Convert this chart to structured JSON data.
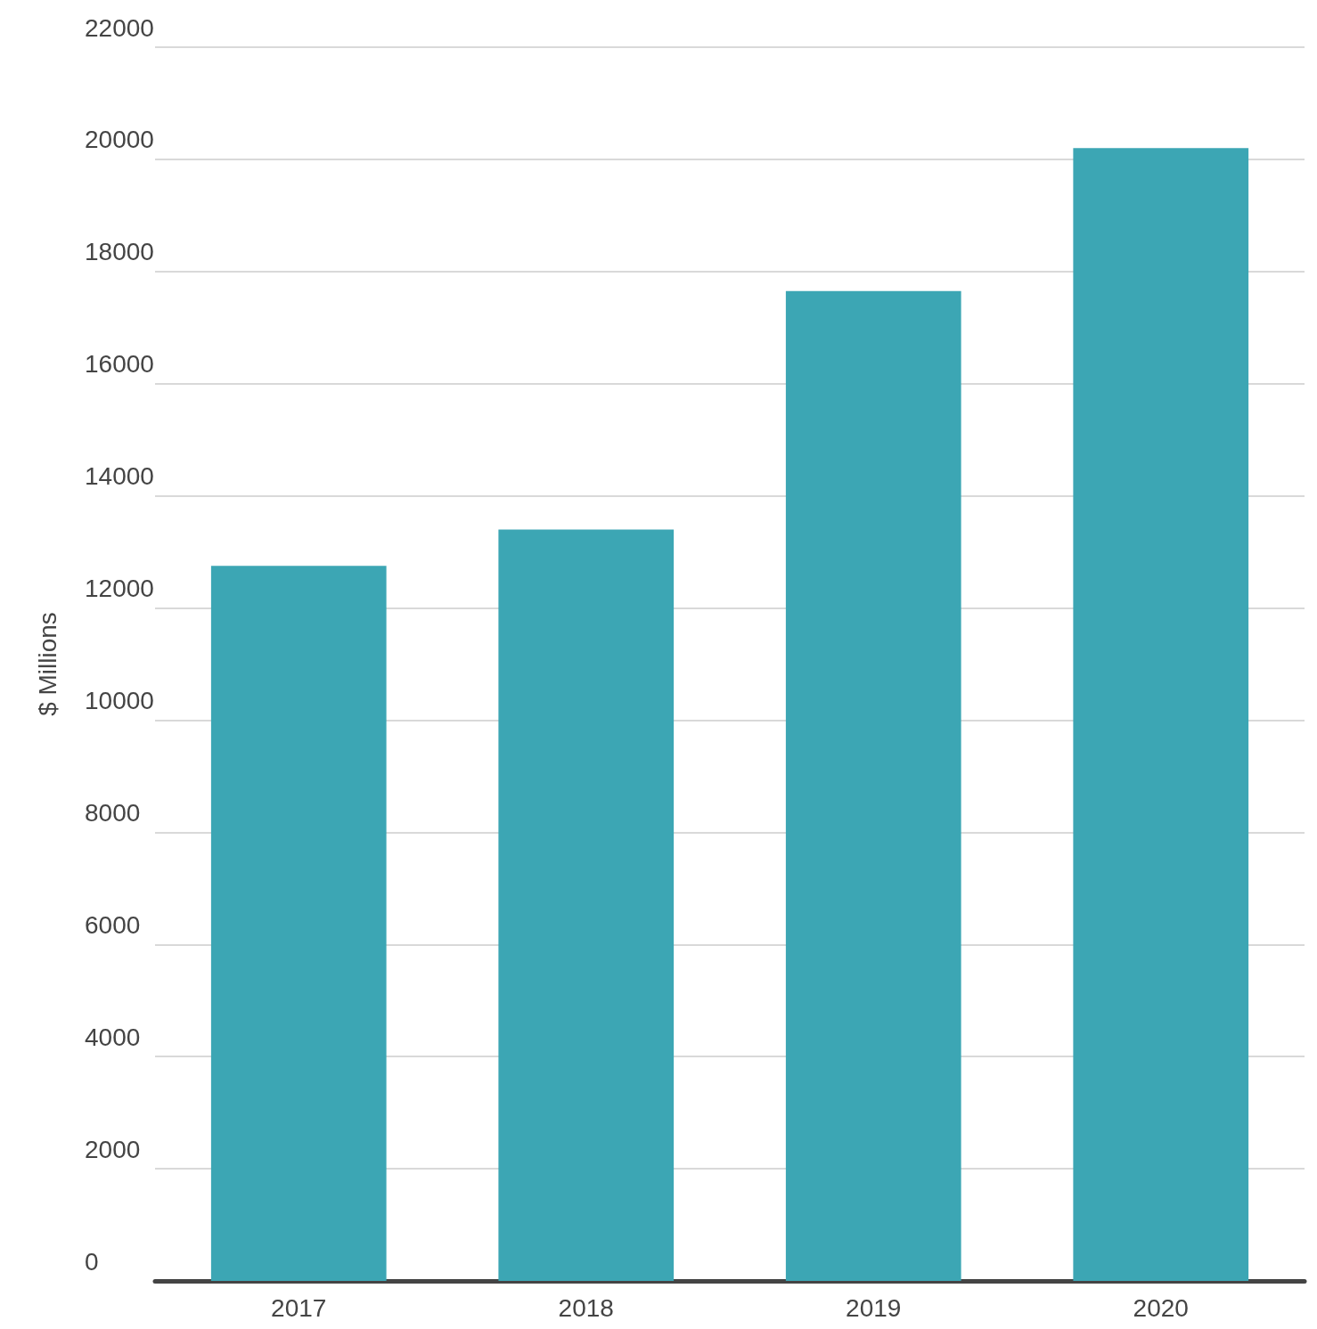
{
  "chart_data": {
    "type": "bar",
    "ylabel": "$ Millions",
    "categories": [
      "2017",
      "2018",
      "2019",
      "2020"
    ],
    "values": [
      12750,
      13400,
      17650,
      20200
    ],
    "color": "#3ca6b4",
    "ylim": [
      0,
      22000
    ],
    "yticks": [
      0,
      2000,
      4000,
      6000,
      8000,
      10000,
      12000,
      14000,
      16000,
      18000,
      20000,
      22000
    ],
    "grid": "y"
  }
}
